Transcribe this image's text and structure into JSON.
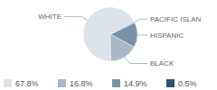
{
  "chart_data": {
    "type": "pie",
    "categories": [
      "WHITE",
      "BLACK",
      "HISPANIC",
      "PACIFIC ISLAN"
    ],
    "values": [
      67.8,
      16.8,
      14.9,
      0.5
    ],
    "value_labels": [
      "67.8%",
      "16.8%",
      "14.9%",
      "0.5%"
    ],
    "colors": [
      "#dde3ea",
      "#a9b8c7",
      "#7a92a8",
      "#2d5470"
    ],
    "legend": "bottom"
  }
}
